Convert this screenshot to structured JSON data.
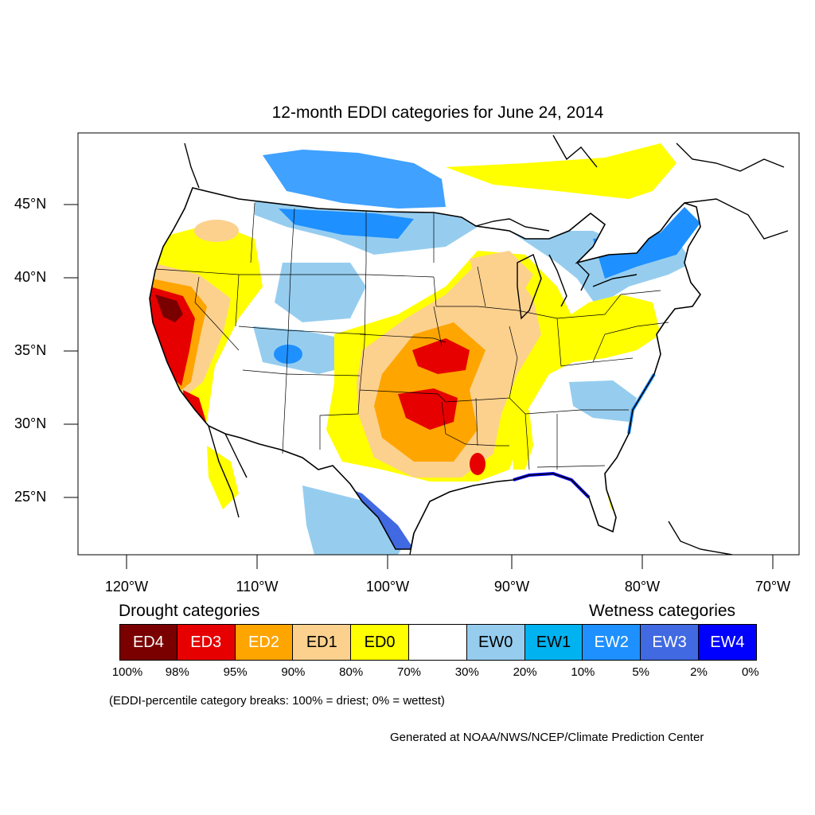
{
  "title": "12-month EDDI categories for June 24, 2014",
  "colors": {
    "ED4": "#7a0000",
    "ED3": "#e60000",
    "ED2": "#ffa500",
    "ED1": "#fcd18e",
    "ED0": "#ffff00",
    "neutral": "#ffffff",
    "EW0": "#96cdef",
    "EW1": "#00b3f0",
    "EW2": "#1e90ff",
    "EW3": "#4169e1",
    "EW4": "#0000ff",
    "outline": "#000000"
  },
  "lat_labels": [
    "45°N",
    "40°N",
    "35°N",
    "30°N",
    "25°N"
  ],
  "lon_labels": [
    "120°W",
    "110°W",
    "100°W",
    "90°W",
    "80°W",
    "70°W"
  ],
  "legend": {
    "drought_heading": "Drought categories",
    "wetness_heading": "Wetness categories",
    "categories": [
      {
        "label": "ED4",
        "color": "#7a0000",
        "text_color": "#ffffff"
      },
      {
        "label": "ED3",
        "color": "#e60000",
        "text_color": "#ffffff"
      },
      {
        "label": "ED2",
        "color": "#ffa500",
        "text_color": "#ffffff"
      },
      {
        "label": "ED1",
        "color": "#fcd18e",
        "text_color": "#000000"
      },
      {
        "label": "ED0",
        "color": "#ffff00",
        "text_color": "#000000"
      },
      {
        "label": "",
        "color": "#ffffff",
        "text_color": "#000000"
      },
      {
        "label": "EW0",
        "color": "#96cdef",
        "text_color": "#000000"
      },
      {
        "label": "EW1",
        "color": "#00b3f0",
        "text_color": "#000000"
      },
      {
        "label": "EW2",
        "color": "#1e90ff",
        "text_color": "#ffffff"
      },
      {
        "label": "EW3",
        "color": "#4169e1",
        "text_color": "#ffffff"
      },
      {
        "label": "EW4",
        "color": "#0000ff",
        "text_color": "#ffffff"
      }
    ],
    "breaks": [
      "100%",
      "98%",
      "95%",
      "90%",
      "80%",
      "70%",
      "30%",
      "20%",
      "10%",
      "5%",
      "2%",
      "0%"
    ]
  },
  "note": "(EDDI-percentile category breaks: 100% = driest; 0% = wettest)",
  "credit": "Generated at NOAA/NWS/NCEP/Climate Prediction Center"
}
